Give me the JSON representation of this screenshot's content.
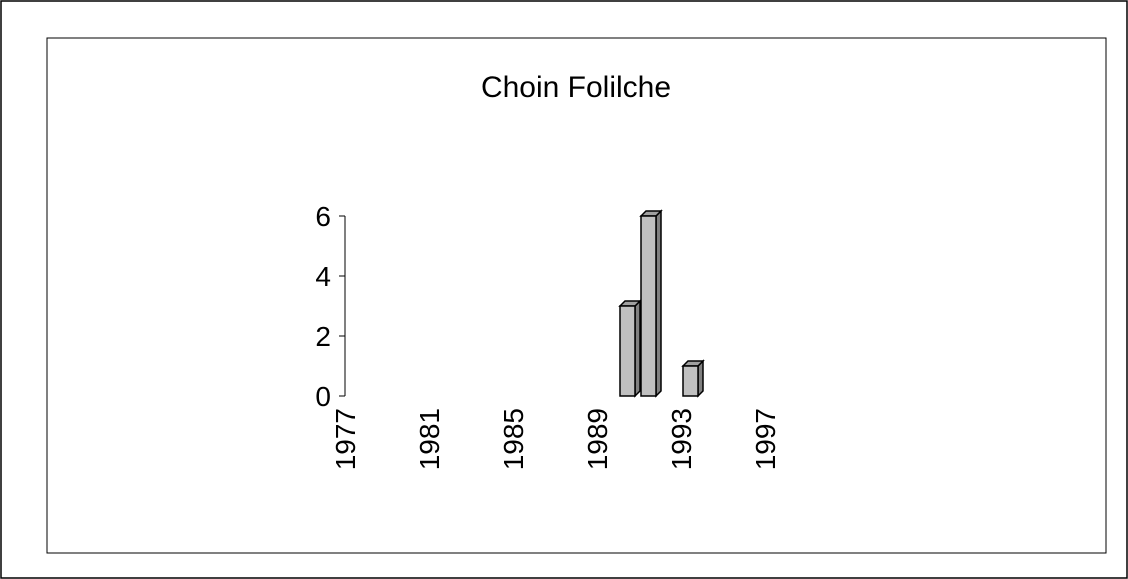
{
  "chart_data": {
    "type": "bar3d",
    "title": "Choin Folilche",
    "categories": [
      "1977",
      null,
      null,
      null,
      "1981",
      null,
      null,
      null,
      "1985",
      null,
      null,
      null,
      "1989",
      null,
      null,
      null,
      "1993",
      null,
      null,
      null,
      "1997"
    ],
    "values": [
      null,
      null,
      null,
      null,
      null,
      null,
      null,
      null,
      null,
      null,
      null,
      null,
      null,
      3,
      6,
      null,
      1,
      null,
      null,
      null,
      null
    ],
    "color": "#c0c0c0",
    "ylim": [
      0,
      6
    ],
    "yticks": [
      0,
      2,
      4,
      6
    ]
  }
}
